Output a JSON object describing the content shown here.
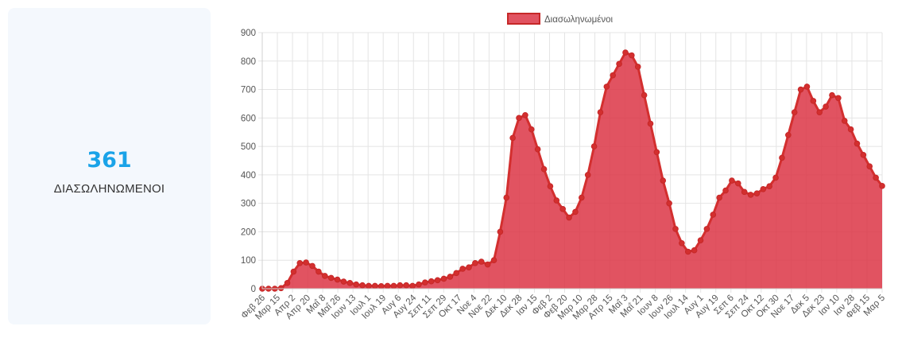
{
  "stat": {
    "value": "361",
    "label": "ΔΙΑΣΩΛΗΝΩΜΕΝΟΙ",
    "value_color": "#1aa3e8",
    "card_color": "#f4f8fd"
  },
  "chart_data": {
    "type": "area",
    "legend_position": "top",
    "grid": true,
    "ylim": [
      0,
      900
    ],
    "y_ticks": [
      0,
      100,
      200,
      300,
      400,
      500,
      600,
      700,
      800,
      900
    ],
    "x_ticks": [
      "Φεβ 26",
      "Μαρ 15",
      "Απρ 2",
      "Απρ 20",
      "Μαΐ 8",
      "Μαΐ 26",
      "Ιουν 13",
      "Ιουλ 1",
      "Ιουλ 19",
      "Αυγ 6",
      "Αυγ 24",
      "Σεπ 11",
      "Σεπ 29",
      "Οκτ 17",
      "Νοε 4",
      "Νοε 22",
      "Δεκ 10",
      "Δεκ 28",
      "Ιαν 15",
      "Φεβ 2",
      "Φεβ 20",
      "Μαρ 10",
      "Μαρ 28",
      "Απρ 15",
      "Μαΐ 3",
      "Μαΐ 21",
      "Ιουν 8",
      "Ιουν 26",
      "Ιουλ 14",
      "Αυγ 1",
      "Αυγ 19",
      "Σεπ 6",
      "Σεπ 24",
      "Οκτ 12",
      "Οκτ 30",
      "Νοε 17",
      "Δεκ 5",
      "Δεκ 23",
      "Ιαν 10",
      "Ιαν 28",
      "Φεβ 15",
      "Μαρ 5"
    ],
    "series": [
      {
        "name": "Διασωληνωμένοι",
        "color": "#dc3545",
        "values": [
          0,
          0,
          0,
          2,
          20,
          60,
          90,
          92,
          80,
          60,
          45,
          38,
          32,
          25,
          20,
          15,
          12,
          10,
          10,
          9,
          10,
          10,
          12,
          12,
          10,
          15,
          22,
          26,
          30,
          35,
          42,
          55,
          70,
          75,
          90,
          95,
          85,
          100,
          200,
          320,
          530,
          600,
          610,
          560,
          490,
          420,
          360,
          310,
          280,
          250,
          270,
          320,
          400,
          500,
          620,
          710,
          750,
          790,
          830,
          820,
          780,
          680,
          580,
          480,
          380,
          300,
          210,
          160,
          130,
          135,
          170,
          210,
          260,
          320,
          345,
          380,
          370,
          340,
          330,
          335,
          350,
          360,
          390,
          460,
          540,
          620,
          700,
          710,
          660,
          620,
          640,
          680,
          670,
          590,
          560,
          510,
          470,
          430,
          390,
          361
        ]
      }
    ]
  }
}
